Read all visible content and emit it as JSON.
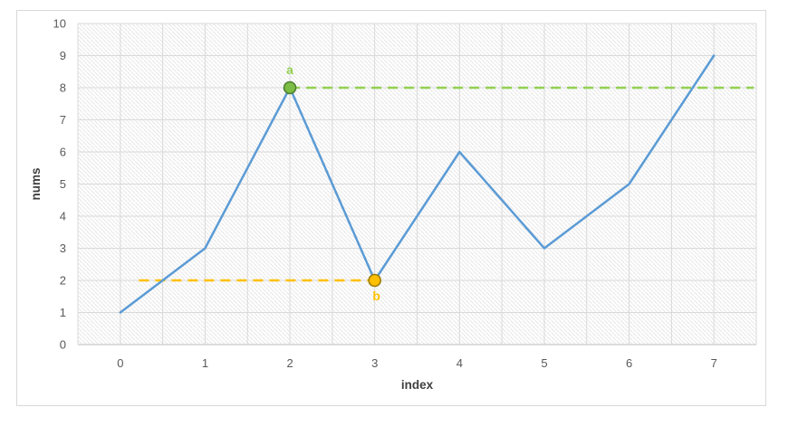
{
  "chart_data": {
    "type": "line",
    "title": "",
    "xlabel": "index",
    "ylabel": "nums",
    "x": [
      0,
      1,
      2,
      3,
      4,
      5,
      6,
      7
    ],
    "series": [
      {
        "name": "nums",
        "values": [
          1,
          3,
          8,
          2,
          6,
          3,
          5,
          9
        ],
        "color": "#5B9BD5",
        "width": 2.5
      }
    ],
    "xlim": [
      -0.5,
      7.5
    ],
    "ylim": [
      0,
      10
    ],
    "x_ticks": [
      0,
      1,
      2,
      3,
      4,
      5,
      6,
      7
    ],
    "y_ticks": [
      0,
      1,
      2,
      3,
      4,
      5,
      6,
      7,
      8,
      9,
      10
    ],
    "x_grid_step": 0.5,
    "grid": true,
    "legend": "none",
    "plot_background": "diagonal-hatch",
    "annotations": [
      {
        "label": "a",
        "x": 2,
        "y": 8,
        "marker": "circle",
        "marker_fill": "#7CBE45",
        "marker_border": "#507E32",
        "label_color": "#92D050",
        "label_position": "above",
        "dashed_line": {
          "y": 8,
          "from_x": 2,
          "to_x": 7.47,
          "color": "#92D050"
        }
      },
      {
        "label": "b",
        "x": 3,
        "y": 2,
        "marker": "circle",
        "marker_fill": "#FFC000",
        "marker_border": "#9E7C00",
        "label_color": "#FFC000",
        "label_position": "below",
        "dashed_line": {
          "y": 2,
          "from_x": 0.22,
          "to_x": 3,
          "color": "#FFC000"
        }
      }
    ],
    "colors": {
      "gridline": "#D9D9D9",
      "axis_line": "#BFBFBF",
      "tick_label": "#595959",
      "axis_title": "#404040",
      "hatch": "#E7E7E7",
      "frame_border": "#D9D9D9",
      "background": "#FFFFFF"
    }
  }
}
